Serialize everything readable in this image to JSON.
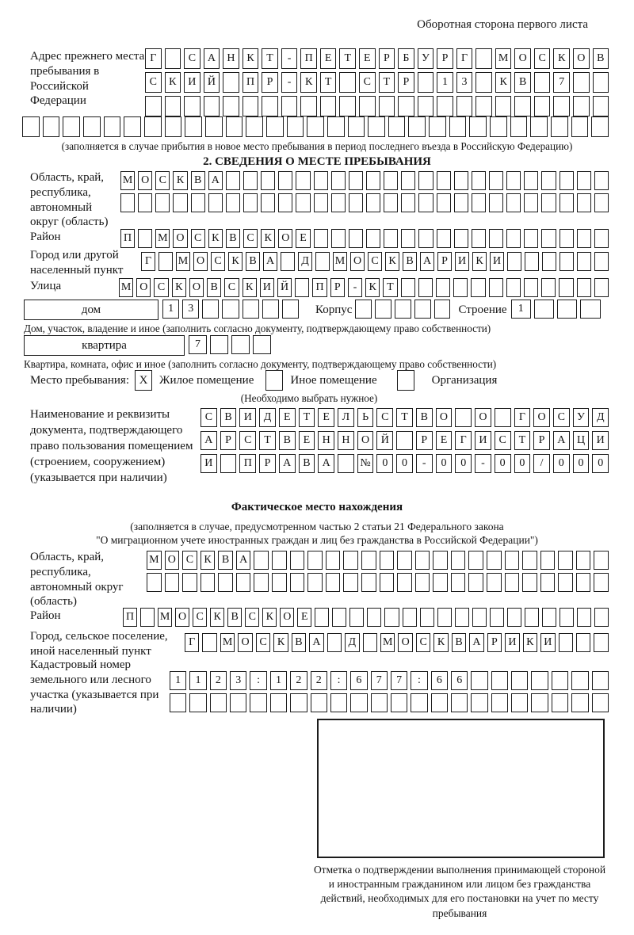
{
  "page": {
    "header_note": "Оборотная сторона первого листа"
  },
  "prev_address": {
    "label": "Адрес прежнего места пребывания в Российской Федерации",
    "rows": [
      {
        "chars": "Г САНКТ-ПЕТЕРБУРГ МОСКОВ",
        "count": 24
      },
      {
        "chars": "СКИЙ ПР-КТ СТР 13 КВ 7",
        "count": 24
      },
      {
        "chars": "",
        "count": 24
      },
      {
        "chars": "",
        "count": 29
      }
    ],
    "note": "(заполняется в случае прибытия в новое место пребывания в период последнего въезда в Российскую Федерацию)"
  },
  "section2": {
    "title": "2. СВЕДЕНИЯ О МЕСТЕ ПРЕБЫВАНИЯ",
    "oblast": {
      "label": "Область, край, республика, автономный округ (область)",
      "rows": [
        {
          "chars": "МОСКВА",
          "count": 28
        },
        {
          "chars": "",
          "count": 28
        }
      ]
    },
    "raion": {
      "label": "Район",
      "row": {
        "chars": "П МОСКВСКОЕ",
        "count": 28
      }
    },
    "gorod": {
      "label": "Город или другой населенный пункт",
      "row": {
        "chars": "Г МОСКВА Д МОСКВАРИКИ",
        "count": 27
      }
    },
    "ulitsa": {
      "label": "Улица",
      "row": {
        "chars": "МОСКОВСКИЙ ПР-КТ",
        "count": 28
      }
    },
    "dom": {
      "box_label": "дом",
      "house_row": {
        "chars": "13",
        "count": 7
      },
      "korpus_label": "Корпус",
      "korpus_row": {
        "chars": "",
        "count": 5
      },
      "stroenie_label": "Строение",
      "stroenie_row": {
        "chars": "1",
        "count": 4
      },
      "note": "Дом, участок, владение и иное (заполнить согласно документу, подтверждающему право собственности)"
    },
    "kvartira": {
      "box_label": "квартира",
      "row": {
        "chars": "7",
        "count": 4
      },
      "note": "Квартира, комната, офис и иное (заполнить согласно документу, подтверждающему право собственности)"
    },
    "mesto": {
      "label": "Место пребывания:",
      "options": [
        {
          "label": "Жилое помещение",
          "checked": "X"
        },
        {
          "label": "Иное помещение",
          "checked": ""
        },
        {
          "label": "Организация",
          "checked": ""
        }
      ],
      "note": "(Необходимо выбрать нужное)"
    },
    "document": {
      "label": "Наименование и реквизиты документа, подтверждающего право пользования помещением (строением, сооружением) (указывается при наличии)",
      "rows": [
        {
          "chars": "СВИДЕТЕЛЬСТВО О ГОСУД",
          "count": 21
        },
        {
          "chars": "АРСТВЕННОЙ РЕГИСТРАЦИ",
          "count": 21
        },
        {
          "chars": "И ПРАВА №00-00-00/000",
          "count": 21
        }
      ]
    }
  },
  "fact": {
    "title": "Фактическое место нахождения",
    "note_line1": "(заполняется в случае, предусмотренном частью 2 статьи 21 Федерального закона",
    "note_line2": "\"О миграционном учете иностранных граждан и лиц без гражданства в Российской Федерации\")",
    "oblast": {
      "label": "Область, край, республика, автономный округ (область)",
      "rows": [
        {
          "chars": "МОСКВА",
          "count": 26
        },
        {
          "chars": "",
          "count": 26
        }
      ]
    },
    "raion": {
      "label": "Район",
      "row": {
        "chars": "П МОСКВСКОЕ",
        "count": 28
      }
    },
    "gorod": {
      "label": "Город, сельское поселение, иной населенный пункт",
      "row": {
        "chars": "Г МОСКВА Д МОСКВАРИКИ",
        "count": 24
      }
    },
    "kadastr": {
      "label": "Кадастровый номер земельного или лесного участка (указывается при наличии)",
      "rows": [
        {
          "chars": "1123:122:677:66",
          "count": 22
        },
        {
          "chars": "",
          "count": 22
        }
      ]
    },
    "stamp_note": "Отметка о подтверждении выполнения принимающей стороной и иностранным гражданином или лицом без гражданства действий, необходимых для его постановки на учет по месту пребывания"
  }
}
